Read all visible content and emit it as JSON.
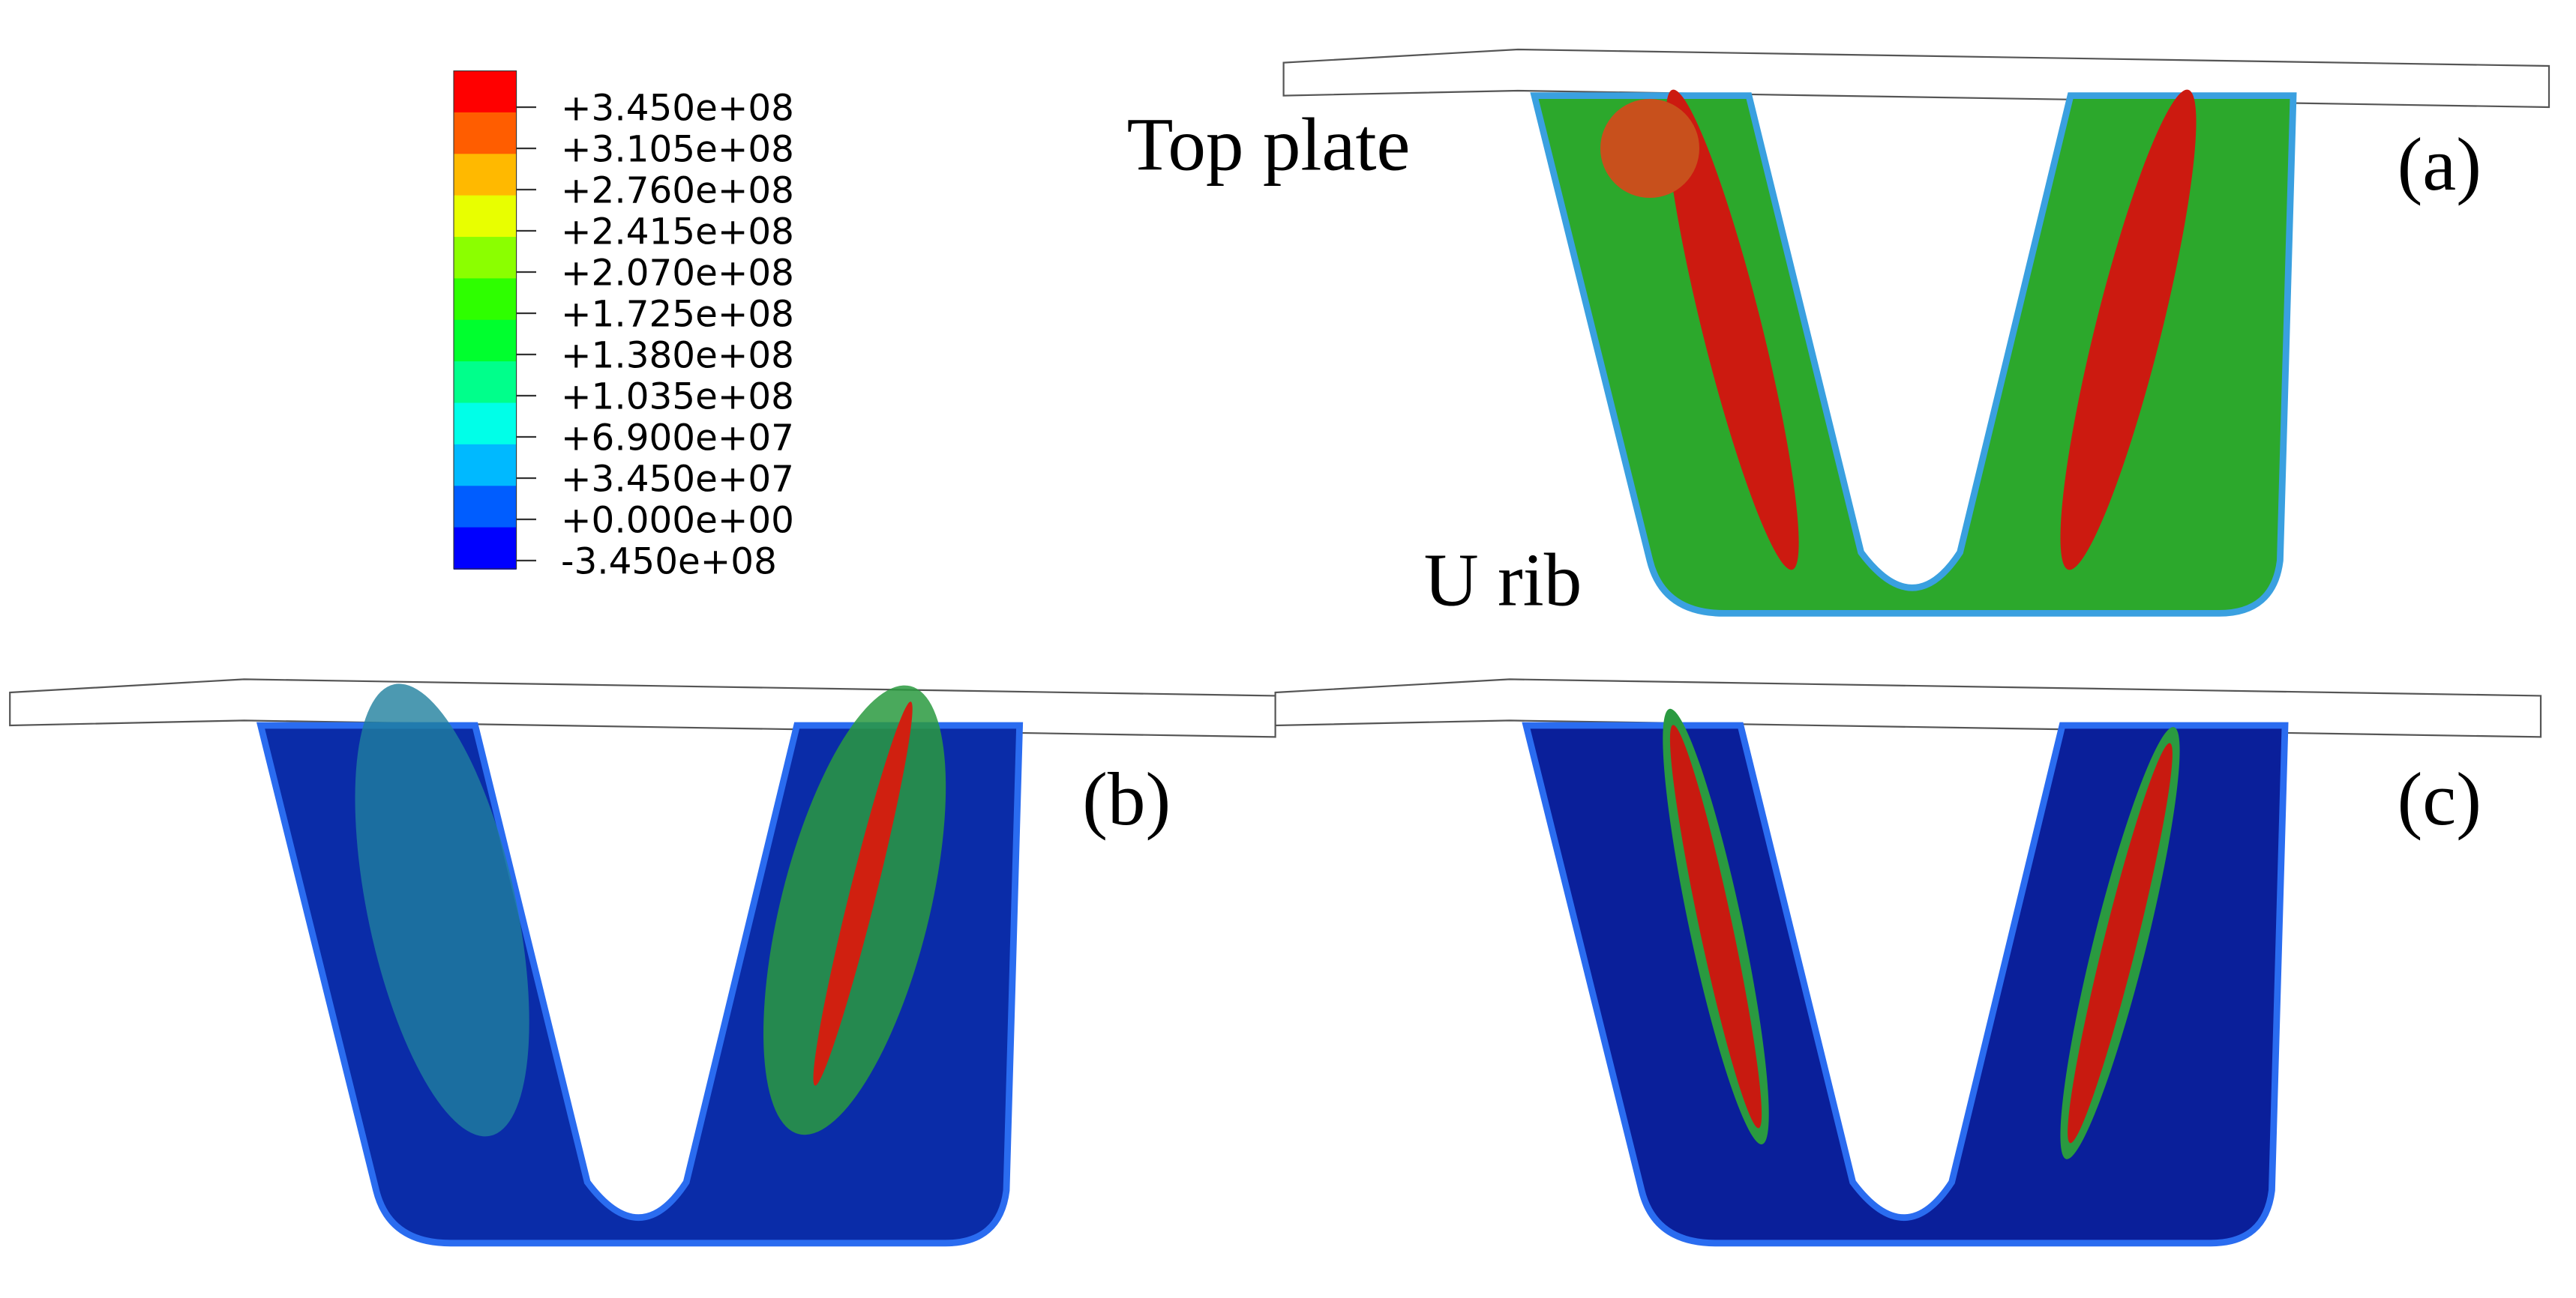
{
  "legend": {
    "labels": [
      "+3.450e+08",
      "+3.105e+08",
      "+2.760e+08",
      "+2.415e+08",
      "+2.070e+08",
      "+1.725e+08",
      "+1.380e+08",
      "+1.035e+08",
      "+6.900e+07",
      "+3.450e+07",
      "+0.000e+00",
      "-3.450e+08"
    ],
    "colors": [
      "#ff0000",
      "#ff5d00",
      "#ffb900",
      "#e8ff00",
      "#8bff00",
      "#2eff00",
      "#00ff2e",
      "#00ff8b",
      "#00ffe8",
      "#00b9ff",
      "#005dff",
      "#0000ff"
    ]
  },
  "annotations": {
    "top_plate": "Top plate",
    "u_rib": "U rib"
  },
  "panels": [
    "(a)",
    "(b)",
    "(c)"
  ]
}
